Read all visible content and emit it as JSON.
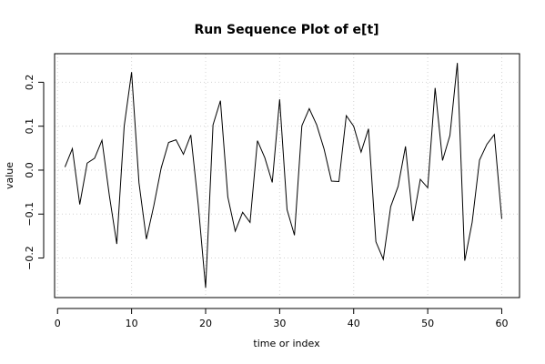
{
  "chart_data": {
    "type": "line",
    "title": "Run Sequence Plot of e[t]",
    "xlabel": "time or index",
    "ylabel": "value",
    "xlim": [
      -0.4,
      62.4
    ],
    "ylim": [
      -0.29,
      0.265
    ],
    "x_ticks": [
      0,
      10,
      20,
      30,
      40,
      50,
      60
    ],
    "y_ticks": [
      -0.2,
      -0.1,
      0.0,
      0.1,
      0.2
    ],
    "x_tick_labels": [
      "0",
      "10",
      "20",
      "30",
      "40",
      "50",
      "60"
    ],
    "y_tick_labels": [
      "−0.2",
      "−0.1",
      "0.0",
      "0.1",
      "0.2"
    ],
    "grid": true,
    "series": [
      {
        "color": "#000000",
        "x": [
          1,
          2,
          3,
          4,
          5,
          6,
          7,
          8,
          9,
          10,
          11,
          12,
          13,
          14,
          15,
          16,
          17,
          18,
          19,
          20,
          21,
          22,
          23,
          24,
          25,
          26,
          27,
          28,
          29,
          30,
          31,
          32,
          33,
          34,
          35,
          36,
          37,
          38,
          39,
          40,
          41,
          42,
          43,
          44,
          45,
          46,
          47,
          48,
          49,
          50,
          51,
          52,
          53,
          54,
          55,
          56,
          57,
          58,
          59,
          60
        ],
        "values": [
          0.007,
          0.049,
          -0.078,
          0.016,
          0.027,
          0.068,
          -0.058,
          -0.168,
          0.1,
          0.223,
          -0.029,
          -0.157,
          -0.081,
          0.005,
          0.063,
          0.069,
          0.036,
          0.08,
          -0.078,
          -0.268,
          0.103,
          0.158,
          -0.061,
          -0.139,
          -0.096,
          -0.119,
          0.067,
          0.028,
          -0.028,
          0.161,
          -0.09,
          -0.148,
          0.101,
          0.14,
          0.103,
          0.048,
          -0.025,
          -0.026,
          0.124,
          0.1,
          0.041,
          0.094,
          -0.163,
          -0.203,
          -0.083,
          -0.037,
          0.054,
          -0.116,
          -0.021,
          -0.04,
          0.187,
          0.022,
          0.079,
          0.244,
          -0.206,
          -0.119,
          0.023,
          0.059,
          0.081,
          -0.111
        ]
      }
    ]
  }
}
